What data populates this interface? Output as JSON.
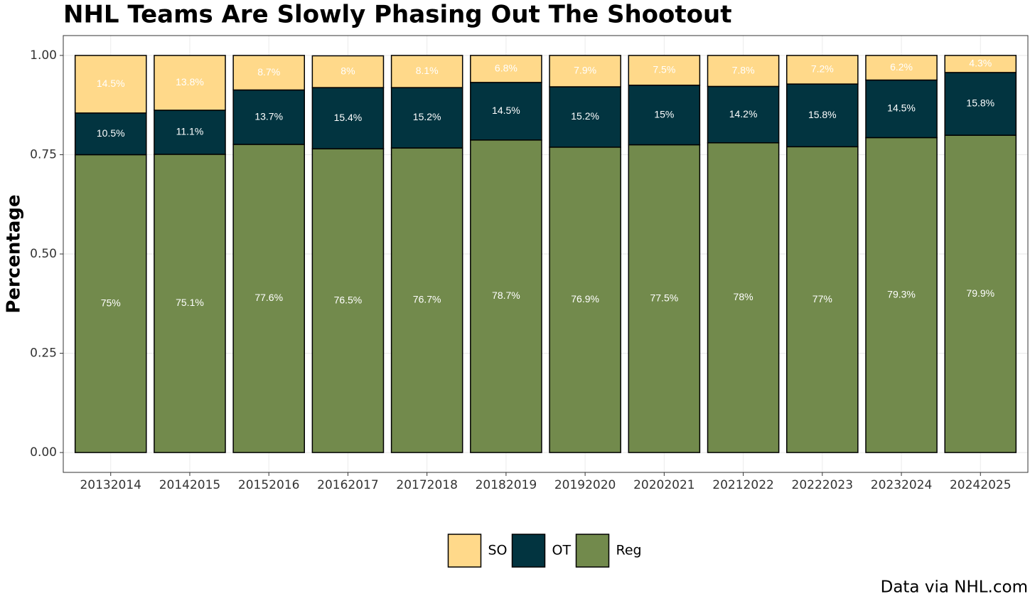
{
  "chart_data": {
    "type": "stacked_bar",
    "title": "NHL Teams Are Slowly Phasing Out The Shootout",
    "y_label": "Percentage",
    "caption": "Data via NHL.com",
    "categories": [
      "20132014",
      "20142015",
      "20152016",
      "20162017",
      "20172018",
      "20182019",
      "20192020",
      "20202021",
      "20212022",
      "20222023",
      "20232024",
      "20242025"
    ],
    "series": [
      {
        "name": "Reg",
        "color": "#728a4c",
        "values": [
          0.75,
          0.751,
          0.776,
          0.765,
          0.767,
          0.787,
          0.769,
          0.775,
          0.78,
          0.77,
          0.793,
          0.799
        ],
        "value_labels": [
          "75%",
          "75.1%",
          "77.6%",
          "76.5%",
          "76.7%",
          "78.7%",
          "76.9%",
          "77.5%",
          "78%",
          "77%",
          "79.3%",
          "79.9%"
        ]
      },
      {
        "name": "OT",
        "color": "#023440",
        "values": [
          0.105,
          0.111,
          0.137,
          0.154,
          0.152,
          0.145,
          0.152,
          0.15,
          0.142,
          0.158,
          0.145,
          0.158
        ],
        "value_labels": [
          "10.5%",
          "11.1%",
          "13.7%",
          "15.4%",
          "15.2%",
          "14.5%",
          "15.2%",
          "15%",
          "14.2%",
          "15.8%",
          "14.5%",
          "15.8%"
        ]
      },
      {
        "name": "SO",
        "color": "#ffd98a",
        "values": [
          0.145,
          0.138,
          0.087,
          0.08,
          0.081,
          0.068,
          0.079,
          0.075,
          0.078,
          0.072,
          0.062,
          0.043
        ],
        "value_labels": [
          "14.5%",
          "13.8%",
          "8.7%",
          "8%",
          "8.1%",
          "6.8%",
          "7.9%",
          "7.5%",
          "7.8%",
          "7.2%",
          "6.2%",
          "4.3%"
        ]
      }
    ],
    "ylim": [
      -0.05,
      1.05
    ],
    "yticks": [
      {
        "value": 0,
        "label": "0.00"
      },
      {
        "value": 0.25,
        "label": "0.25"
      },
      {
        "value": 0.5,
        "label": "0.50"
      },
      {
        "value": 0.75,
        "label": "0.75"
      },
      {
        "value": 1,
        "label": "1.00"
      }
    ],
    "grid": true,
    "legend": "bottom"
  }
}
